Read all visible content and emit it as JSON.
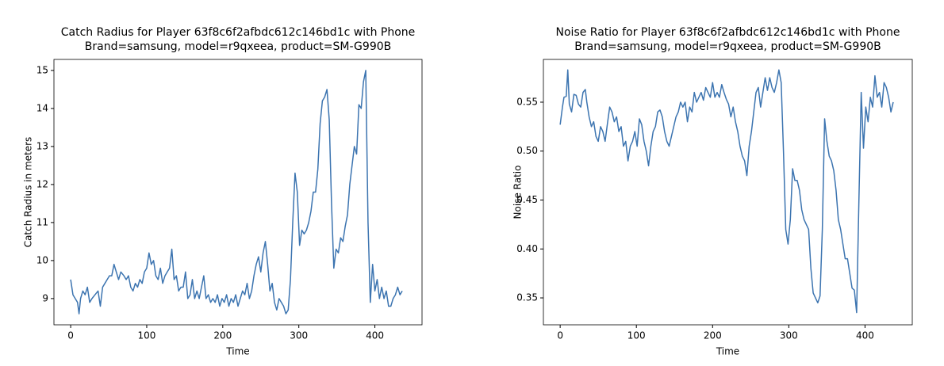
{
  "chart_data": [
    {
      "type": "line",
      "title": [
        "Catch Radius for Player 63f8c6f2afbdc612c146bd1c with Phone",
        "Brand=samsung, model=r9qxeea, product=SM-G990B"
      ],
      "xlabel": "Time",
      "ylabel": "Catch Radius in meters",
      "xlim": [
        -22,
        462
      ],
      "ylim": [
        8.31,
        15.29
      ],
      "xticks": [
        0,
        100,
        200,
        300,
        400
      ],
      "yticks": [
        9,
        10,
        11,
        12,
        13,
        14,
        15
      ],
      "grid": false,
      "x": [
        0,
        3,
        6,
        9,
        11,
        13,
        16,
        19,
        22,
        25,
        28,
        32,
        36,
        39,
        42,
        45,
        48,
        51,
        54,
        57,
        60,
        63,
        66,
        70,
        73,
        76,
        79,
        82,
        85,
        88,
        91,
        94,
        97,
        100,
        103,
        106,
        109,
        112,
        115,
        118,
        121,
        124,
        127,
        130,
        133,
        136,
        139,
        142,
        145,
        148,
        151,
        154,
        157,
        160,
        163,
        166,
        169,
        172,
        175,
        178,
        181,
        184,
        187,
        190,
        193,
        196,
        199,
        202,
        205,
        208,
        211,
        214,
        217,
        220,
        223,
        226,
        229,
        232,
        235,
        238,
        241,
        244,
        247,
        250,
        253,
        256,
        259,
        262,
        265,
        268,
        271,
        274,
        277,
        280,
        283,
        286,
        289,
        292,
        295,
        298,
        301,
        304,
        307,
        310,
        313,
        316,
        319,
        322,
        325,
        328,
        331,
        334,
        337,
        340,
        343,
        346,
        349,
        352,
        355,
        358,
        361,
        364,
        367,
        370,
        373,
        376,
        379,
        382,
        385,
        388,
        391,
        394,
        397,
        400,
        403,
        406,
        409,
        412,
        415,
        418,
        421,
        424,
        427,
        430,
        433,
        436
      ],
      "series": [
        {
          "color": "#3c74b0",
          "values": [
            9.5,
            9.1,
            9.0,
            8.9,
            8.6,
            9.0,
            9.2,
            9.1,
            9.3,
            8.9,
            9.0,
            9.1,
            9.2,
            8.8,
            9.3,
            9.4,
            9.5,
            9.6,
            9.6,
            9.9,
            9.7,
            9.5,
            9.7,
            9.6,
            9.5,
            9.6,
            9.3,
            9.2,
            9.4,
            9.3,
            9.5,
            9.4,
            9.7,
            9.8,
            10.2,
            9.9,
            10.0,
            9.6,
            9.5,
            9.8,
            9.4,
            9.6,
            9.7,
            9.8,
            10.3,
            9.5,
            9.6,
            9.2,
            9.3,
            9.3,
            9.7,
            9.0,
            9.1,
            9.5,
            9.0,
            9.2,
            9.0,
            9.3,
            9.6,
            9.0,
            9.1,
            8.9,
            9.0,
            8.9,
            9.1,
            8.8,
            9.0,
            8.9,
            9.1,
            8.8,
            9.0,
            8.9,
            9.1,
            8.8,
            9.0,
            9.2,
            9.1,
            9.4,
            9.0,
            9.2,
            9.6,
            9.9,
            10.1,
            9.7,
            10.2,
            10.5,
            9.9,
            9.2,
            9.4,
            8.9,
            8.7,
            9.0,
            8.9,
            8.8,
            8.6,
            8.7,
            9.5,
            11.0,
            12.3,
            11.8,
            10.4,
            10.8,
            10.7,
            10.8,
            11.0,
            11.3,
            11.8,
            11.8,
            12.4,
            13.6,
            14.2,
            14.3,
            14.5,
            13.7,
            11.5,
            9.8,
            10.3,
            10.2,
            10.6,
            10.5,
            10.9,
            11.2,
            12.0,
            12.5,
            13.0,
            12.8,
            14.1,
            14.0,
            14.7,
            15.0,
            11.0,
            8.9,
            9.9,
            9.2,
            9.5,
            9.0,
            9.3,
            9.0,
            9.2,
            8.8,
            8.8,
            9.0,
            9.1,
            9.3,
            9.1,
            9.2
          ]
        }
      ]
    },
    {
      "type": "line",
      "title": [
        "Noise Ratio for Player 63f8c6f2afbdc612c146bd1c with Phone",
        "Brand=samsung, model=r9qxeea, product=SM-G990B"
      ],
      "xlabel": "Time",
      "ylabel": "Noise Ratio",
      "xlim": [
        -22,
        462
      ],
      "ylim": [
        0.3225,
        0.5937
      ],
      "xticks": [
        0,
        100,
        200,
        300,
        400
      ],
      "yticks": [
        0.35,
        {
          "value": 0.4,
          "label": "0.40"
        },
        0.45,
        {
          "value": 0.5,
          "label": "0.50"
        },
        0.55
      ],
      "grid": false,
      "x": [
        0,
        3,
        5,
        8,
        10,
        12,
        15,
        18,
        21,
        24,
        27,
        30,
        33,
        35,
        38,
        41,
        44,
        47,
        50,
        53,
        56,
        59,
        62,
        65,
        68,
        71,
        74,
        77,
        80,
        83,
        86,
        89,
        92,
        95,
        98,
        101,
        104,
        107,
        110,
        113,
        116,
        119,
        122,
        125,
        128,
        131,
        134,
        137,
        140,
        143,
        146,
        149,
        152,
        155,
        158,
        161,
        164,
        167,
        170,
        173,
        176,
        179,
        182,
        185,
        188,
        191,
        194,
        197,
        200,
        203,
        206,
        209,
        212,
        215,
        218,
        221,
        224,
        227,
        230,
        233,
        236,
        239,
        242,
        245,
        248,
        251,
        254,
        257,
        260,
        263,
        266,
        269,
        272,
        275,
        278,
        281,
        284,
        287,
        290,
        293,
        296,
        299,
        302,
        305,
        308,
        311,
        314,
        317,
        320,
        323,
        326,
        329,
        332,
        335,
        338,
        341,
        344,
        347,
        350,
        353,
        356,
        359,
        362,
        365,
        368,
        371,
        374,
        377,
        380,
        383,
        386,
        389,
        392,
        395,
        398,
        401,
        404,
        407,
        410,
        413,
        416,
        419,
        422,
        425,
        428,
        431,
        434,
        437
      ],
      "series": [
        {
          "color": "#3c74b0",
          "values": [
            0.527,
            0.545,
            0.555,
            0.556,
            0.583,
            0.548,
            0.54,
            0.558,
            0.557,
            0.548,
            0.545,
            0.56,
            0.563,
            0.55,
            0.535,
            0.525,
            0.53,
            0.515,
            0.51,
            0.525,
            0.52,
            0.51,
            0.528,
            0.545,
            0.54,
            0.53,
            0.535,
            0.52,
            0.525,
            0.505,
            0.51,
            0.49,
            0.505,
            0.51,
            0.52,
            0.505,
            0.533,
            0.527,
            0.51,
            0.5,
            0.485,
            0.505,
            0.52,
            0.525,
            0.54,
            0.542,
            0.535,
            0.52,
            0.51,
            0.505,
            0.515,
            0.525,
            0.535,
            0.54,
            0.55,
            0.545,
            0.55,
            0.53,
            0.545,
            0.54,
            0.56,
            0.55,
            0.555,
            0.56,
            0.552,
            0.565,
            0.56,
            0.555,
            0.57,
            0.555,
            0.56,
            0.555,
            0.568,
            0.56,
            0.553,
            0.548,
            0.535,
            0.545,
            0.53,
            0.52,
            0.505,
            0.495,
            0.49,
            0.475,
            0.505,
            0.52,
            0.54,
            0.56,
            0.565,
            0.545,
            0.56,
            0.575,
            0.562,
            0.575,
            0.565,
            0.56,
            0.57,
            0.583,
            0.57,
            0.5,
            0.42,
            0.405,
            0.43,
            0.482,
            0.47,
            0.47,
            0.46,
            0.44,
            0.43,
            0.425,
            0.42,
            0.38,
            0.355,
            0.35,
            0.345,
            0.352,
            0.42,
            0.533,
            0.51,
            0.495,
            0.49,
            0.48,
            0.46,
            0.43,
            0.42,
            0.405,
            0.39,
            0.39,
            0.375,
            0.36,
            0.358,
            0.335,
            0.45,
            0.56,
            0.503,
            0.545,
            0.53,
            0.555,
            0.545,
            0.577,
            0.555,
            0.56,
            0.545,
            0.57,
            0.565,
            0.555,
            0.54,
            0.55
          ]
        }
      ]
    }
  ]
}
